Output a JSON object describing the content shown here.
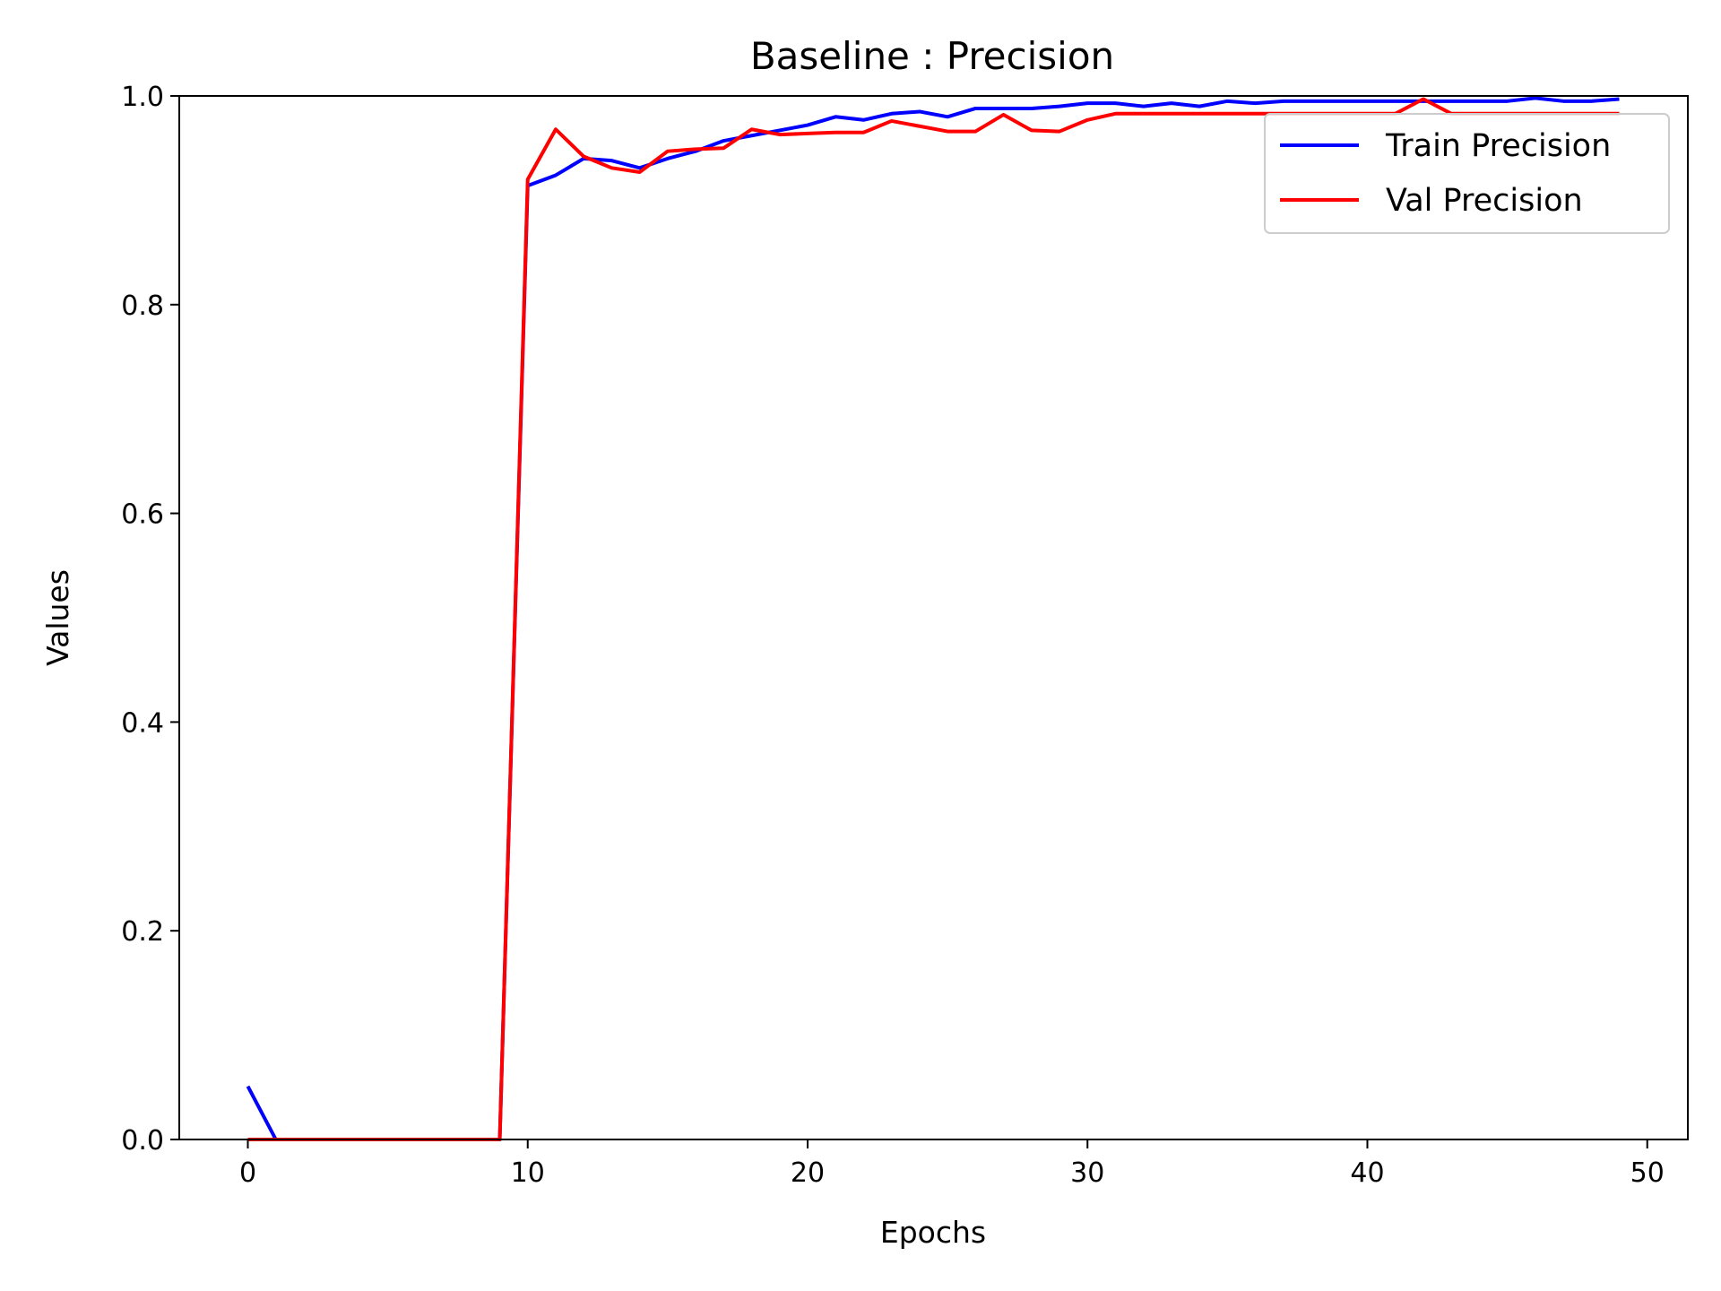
{
  "chart_data": {
    "type": "line",
    "title": "Baseline : Precision",
    "xlabel": "Epochs",
    "ylabel": "Values",
    "xlim": [
      -2.45,
      51.45
    ],
    "ylim": [
      0.0,
      1.0
    ],
    "xticks": [
      0,
      10,
      20,
      30,
      40,
      50
    ],
    "xtick_labels": [
      "0",
      "10",
      "20",
      "30",
      "40",
      "50"
    ],
    "yticks": [
      0.0,
      0.2,
      0.4,
      0.6,
      0.8,
      1.0
    ],
    "ytick_labels": [
      "0.0",
      "0.2",
      "0.4",
      "0.6",
      "0.8",
      "1.0"
    ],
    "grid": false,
    "legend_position": "top-right",
    "x": [
      0,
      1,
      2,
      3,
      4,
      5,
      6,
      7,
      8,
      9,
      10,
      11,
      12,
      13,
      14,
      15,
      16,
      17,
      18,
      19,
      20,
      21,
      22,
      23,
      24,
      25,
      26,
      27,
      28,
      29,
      30,
      31,
      32,
      33,
      34,
      35,
      36,
      37,
      38,
      39,
      40,
      41,
      42,
      43,
      44,
      45,
      46,
      47,
      48,
      49
    ],
    "series": [
      {
        "name": "Train Precision",
        "color": "#0000ff",
        "values": [
          0.051,
          0.0,
          0.0,
          0.0,
          0.0,
          0.0,
          0.0,
          0.0,
          0.0,
          0.0,
          0.914,
          0.924,
          0.94,
          0.938,
          0.931,
          0.94,
          0.947,
          0.957,
          0.962,
          0.967,
          0.972,
          0.98,
          0.977,
          0.983,
          0.985,
          0.98,
          0.988,
          0.988,
          0.988,
          0.99,
          0.993,
          0.993,
          0.99,
          0.993,
          0.99,
          0.995,
          0.993,
          0.995,
          0.995,
          0.995,
          0.995,
          0.995,
          0.995,
          0.995,
          0.995,
          0.995,
          0.998,
          0.995,
          0.995,
          0.997
        ]
      },
      {
        "name": "Val Precision",
        "color": "#ff0000",
        "values": [
          0.0,
          0.0,
          0.0,
          0.0,
          0.0,
          0.0,
          0.0,
          0.0,
          0.0,
          0.0,
          0.92,
          0.968,
          0.942,
          0.931,
          0.927,
          0.947,
          0.949,
          0.95,
          0.968,
          0.963,
          0.964,
          0.965,
          0.965,
          0.976,
          0.971,
          0.966,
          0.966,
          0.982,
          0.967,
          0.966,
          0.977,
          0.983,
          0.983,
          0.983,
          0.983,
          0.983,
          0.983,
          0.983,
          0.983,
          0.983,
          0.983,
          0.983,
          0.997,
          0.983,
          0.983,
          0.983,
          0.983,
          0.983,
          0.983,
          0.983
        ]
      }
    ]
  }
}
